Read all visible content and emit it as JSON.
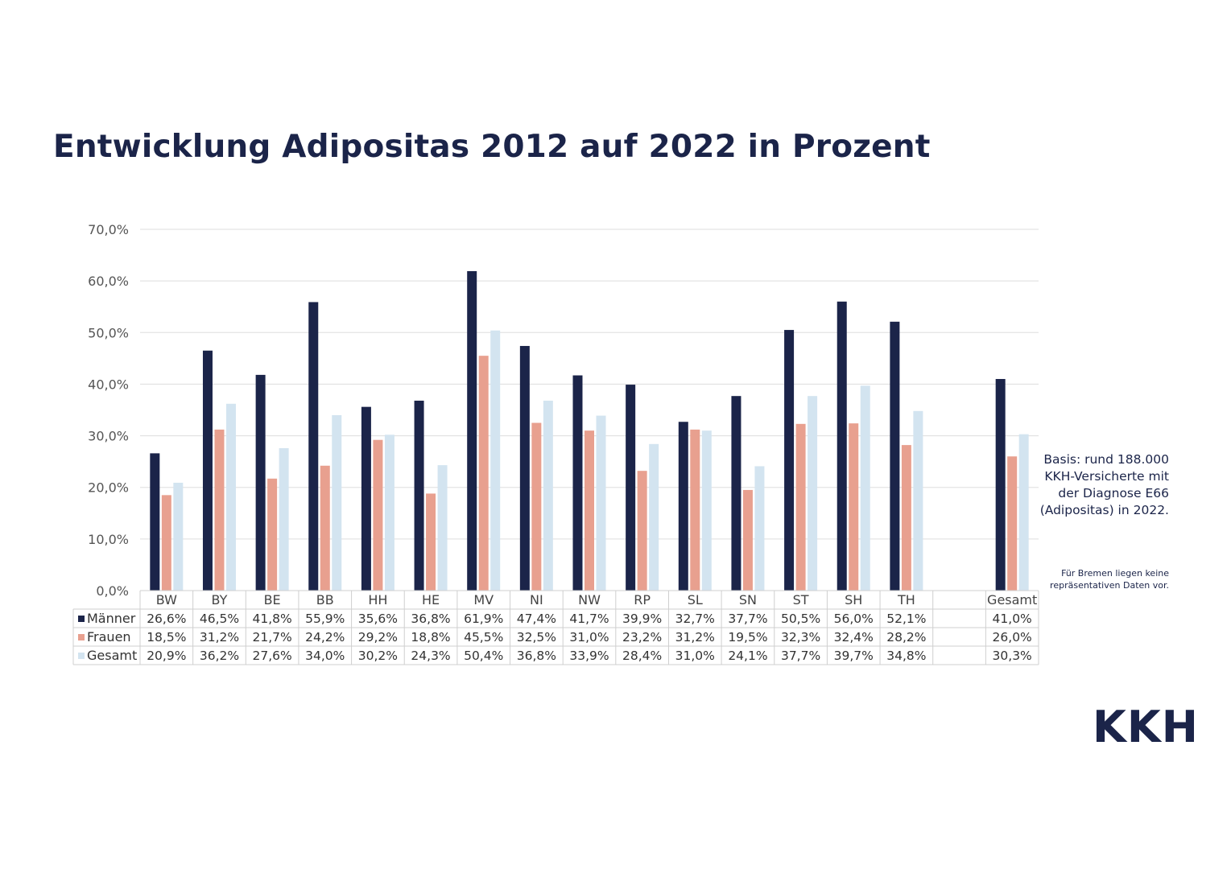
{
  "title": "Entwicklung Adipositas 2012 auf 2022 in Prozent",
  "note": "Basis: rund 188.000 KKH-Versicherte mit der Diagnose E66 (Adipositas) in 2022.",
  "footnote": "Für Bremen liegen keine repräsentativen Daten vor.",
  "logo": "KKH",
  "colors": {
    "maenner": "#1b2449",
    "frauen": "#e8a08f",
    "gesamt": "#d3e4f0"
  },
  "chart_data": {
    "type": "bar",
    "title": "Entwicklung Adipositas 2012 auf 2022 in Prozent",
    "categories": [
      "BW",
      "BY",
      "BE",
      "BB",
      "HH",
      "HE",
      "MV",
      "NI",
      "NW",
      "RP",
      "SL",
      "SN",
      "ST",
      "SH",
      "TH",
      "",
      "Gesamt"
    ],
    "series": [
      {
        "name": "Männer",
        "values": [
          26.6,
          46.5,
          41.8,
          55.9,
          35.6,
          36.8,
          61.9,
          47.4,
          41.7,
          39.9,
          32.7,
          37.7,
          50.5,
          56.0,
          52.1,
          null,
          41.0
        ],
        "labels": [
          "26,6%",
          "46,5%",
          "41,8%",
          "55,9%",
          "35,6%",
          "36,8%",
          "61,9%",
          "47,4%",
          "41,7%",
          "39,9%",
          "32,7%",
          "37,7%",
          "50,5%",
          "56,0%",
          "52,1%",
          "",
          "41,0%"
        ]
      },
      {
        "name": "Frauen",
        "values": [
          18.5,
          31.2,
          21.7,
          24.2,
          29.2,
          18.8,
          45.5,
          32.5,
          31.0,
          23.2,
          31.2,
          19.5,
          32.3,
          32.4,
          28.2,
          null,
          26.0
        ],
        "labels": [
          "18,5%",
          "31,2%",
          "21,7%",
          "24,2%",
          "29,2%",
          "18,8%",
          "45,5%",
          "32,5%",
          "31,0%",
          "23,2%",
          "31,2%",
          "19,5%",
          "32,3%",
          "32,4%",
          "28,2%",
          "",
          "26,0%"
        ]
      },
      {
        "name": "Gesamt",
        "values": [
          20.9,
          36.2,
          27.6,
          34.0,
          30.2,
          24.3,
          50.4,
          36.8,
          33.9,
          28.4,
          31.0,
          24.1,
          37.7,
          39.7,
          34.8,
          null,
          30.3
        ],
        "labels": [
          "20,9%",
          "36,2%",
          "27,6%",
          "34,0%",
          "30,2%",
          "24,3%",
          "50,4%",
          "36,8%",
          "33,9%",
          "28,4%",
          "31,0%",
          "24,1%",
          "37,7%",
          "39,7%",
          "34,8%",
          "",
          "30,3%"
        ]
      }
    ],
    "yticks": [
      "0,0%",
      "10,0%",
      "20,0%",
      "30,0%",
      "40,0%",
      "50,0%",
      "60,0%",
      "70,0%"
    ],
    "ylim": [
      0,
      70
    ],
    "grid": true,
    "legend": "data table below chart"
  }
}
